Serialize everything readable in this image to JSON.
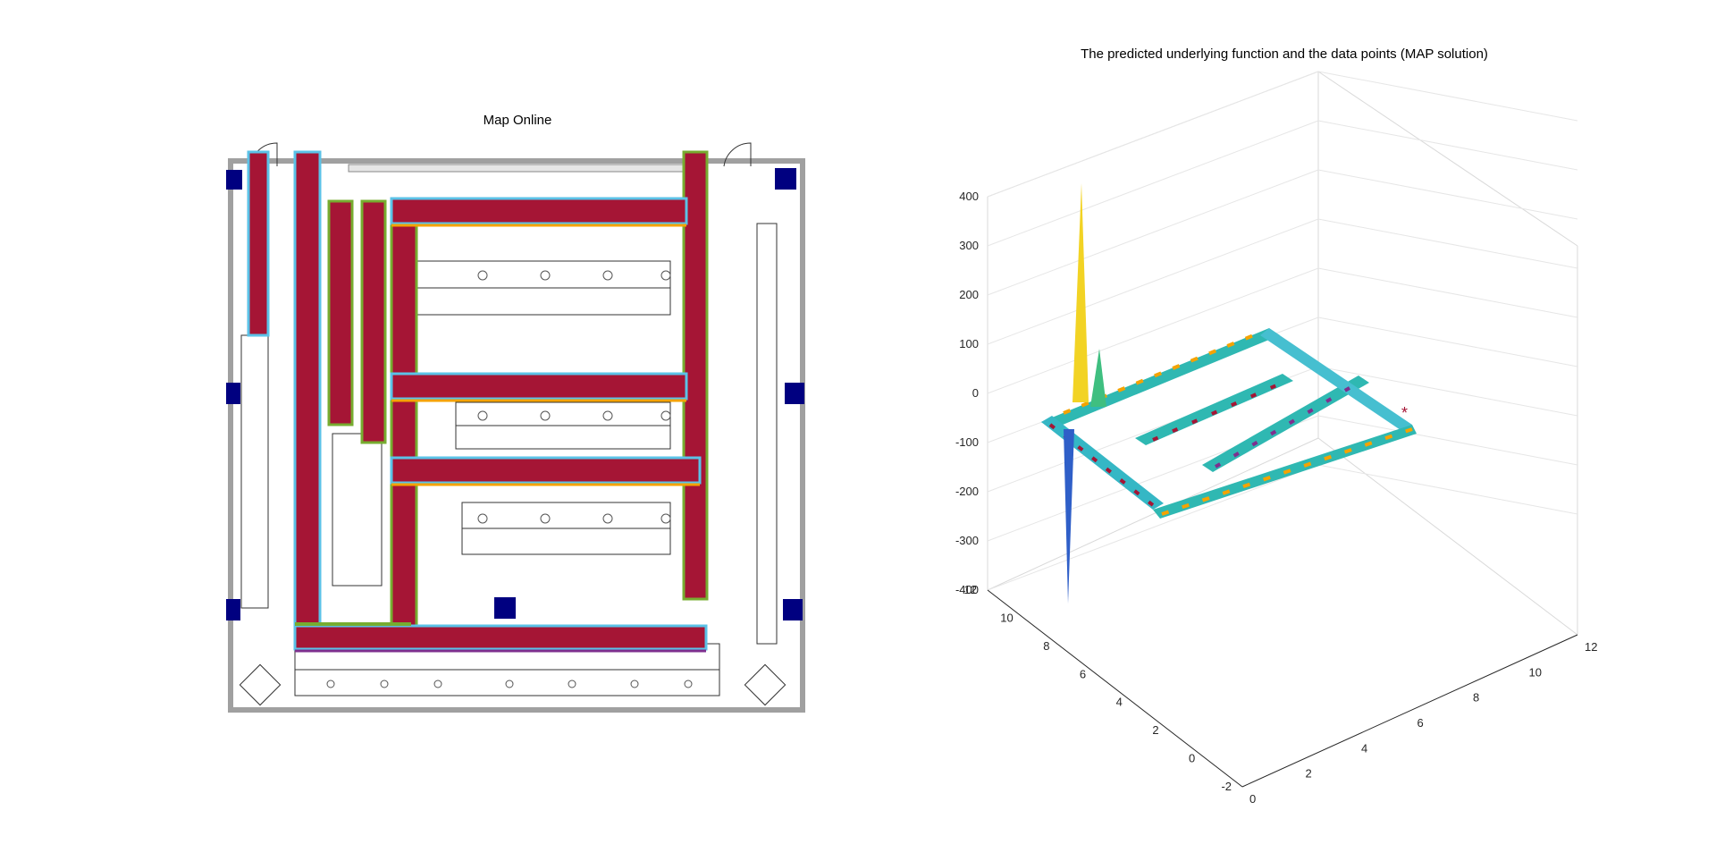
{
  "left_panel": {
    "title": "Map Online",
    "colors": {
      "path_fill": "#a51535",
      "edge_cyan": "#5bc2e7",
      "edge_green": "#77ac30",
      "edge_orange": "#f4a300",
      "edge_purple": "#7e2f8e",
      "anchor": "#000080",
      "wall": "#a0a0a0"
    }
  },
  "chart_data": [
    {
      "type": "map",
      "title": "Map Online",
      "elements": [
        "floor plan walls",
        "desk clusters",
        "explored paths",
        "anchor markers"
      ]
    },
    {
      "type": "surface",
      "title": "The predicted underlying function and the data points (MAP solution)",
      "z_ticks": [
        400,
        300,
        200,
        100,
        0,
        -100,
        -200,
        -300,
        -400
      ],
      "zlim": [
        -400,
        400
      ],
      "y_ticks": [
        12,
        10,
        8,
        6,
        4,
        2,
        0,
        -2
      ],
      "ylim": [
        -2,
        12
      ],
      "x_ticks": [
        0,
        2,
        4,
        6,
        8,
        10,
        12
      ],
      "xlim": [
        0,
        12
      ],
      "grid": true,
      "colormap": "parula",
      "spikes_z": [
        380,
        -370
      ]
    }
  ],
  "right_panel": {
    "title": "The predicted underlying function and the data points (MAP solution)",
    "marker": "*"
  }
}
